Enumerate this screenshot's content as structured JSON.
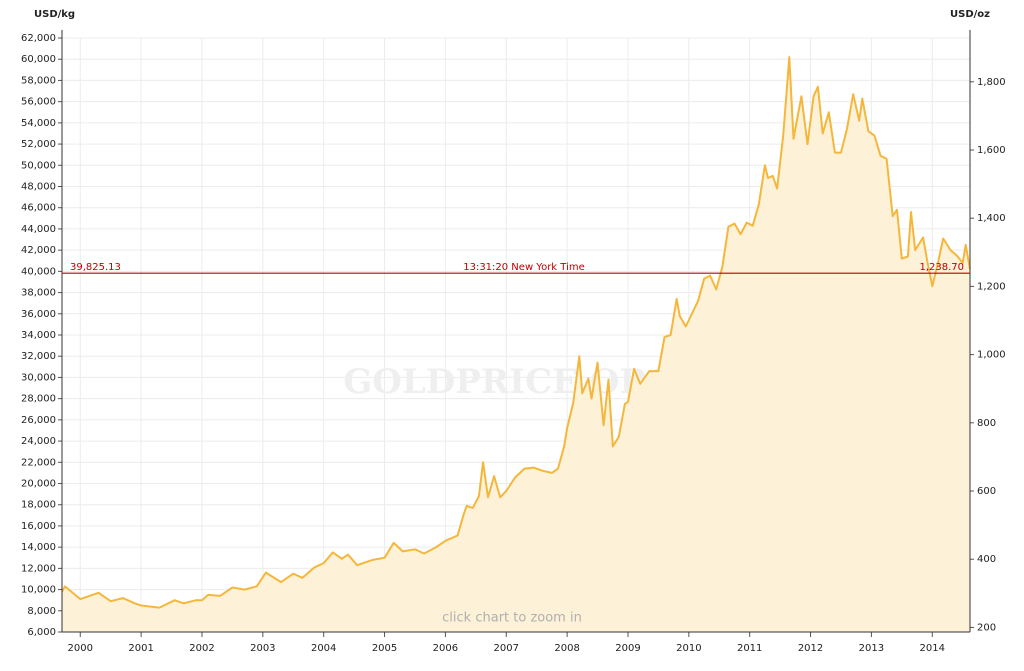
{
  "chart_data": {
    "type": "area",
    "y_label": "USD/kg",
    "y2_label": "USD/oz",
    "watermark": "GOLDPRICE.ORG",
    "hint": "click chart to zoom in",
    "color": "#f5b73b",
    "fill_color": "#fdf1d8",
    "grid": true,
    "x": [
      1999.7,
      1999.75,
      2000,
      2000.3,
      2000.5,
      2000.7,
      2000.9,
      2001,
      2001.3,
      2001.55,
      2001.7,
      2001.9,
      2002,
      2002.1,
      2002.3,
      2002.5,
      2002.7,
      2002.9,
      2003.05,
      2003.3,
      2003.5,
      2003.65,
      2003.85,
      2004,
      2004.15,
      2004.3,
      2004.4,
      2004.55,
      2004.8,
      2005,
      2005.15,
      2005.3,
      2005.5,
      2005.65,
      2005.85,
      2006,
      2006.2,
      2006.3,
      2006.35,
      2006.45,
      2006.55,
      2006.62,
      2006.7,
      2006.8,
      2006.9,
      2007,
      2007.15,
      2007.3,
      2007.45,
      2007.6,
      2007.75,
      2007.85,
      2007.95,
      2008,
      2008.1,
      2008.2,
      2008.25,
      2008.35,
      2008.4,
      2008.5,
      2008.6,
      2008.68,
      2008.75,
      2008.85,
      2008.95,
      2009,
      2009.1,
      2009.2,
      2009.35,
      2009.5,
      2009.6,
      2009.7,
      2009.8,
      2009.85,
      2009.95,
      2010.05,
      2010.15,
      2010.25,
      2010.35,
      2010.45,
      2010.55,
      2010.65,
      2010.75,
      2010.85,
      2010.95,
      2011.05,
      2011.15,
      2011.25,
      2011.3,
      2011.38,
      2011.45,
      2011.55,
      2011.65,
      2011.72,
      2011.85,
      2011.95,
      2012.05,
      2012.12,
      2012.2,
      2012.3,
      2012.4,
      2012.5,
      2012.6,
      2012.7,
      2012.8,
      2012.85,
      2012.95,
      2013.05,
      2013.15,
      2013.25,
      2013.35,
      2013.42,
      2013.5,
      2013.6,
      2013.65,
      2013.72,
      2013.85,
      2013.92,
      2014,
      2014.1,
      2014.18,
      2014.3,
      2014.4,
      2014.5,
      2014.55,
      2014.62
    ],
    "values": [
      9800,
      10300,
      9100,
      9700,
      8900,
      9200,
      8700,
      8500,
      8300,
      9000,
      8700,
      9000,
      9000,
      9500,
      9400,
      10200,
      10000,
      10300,
      11600,
      10700,
      11500,
      11100,
      12100,
      12500,
      13500,
      12900,
      13300,
      12300,
      12800,
      13000,
      14400,
      13600,
      13800,
      13400,
      14000,
      14600,
      15100,
      17100,
      17900,
      17700,
      18800,
      22000,
      18700,
      20700,
      18700,
      19300,
      20600,
      21400,
      21500,
      21200,
      21000,
      21400,
      23500,
      25200,
      27600,
      32000,
      28500,
      29900,
      28000,
      31400,
      25500,
      29800,
      23500,
      24400,
      27500,
      27700,
      30800,
      29400,
      30600,
      30600,
      33800,
      34000,
      37400,
      35800,
      34800,
      36000,
      37200,
      39300,
      39600,
      38300,
      40400,
      44200,
      44500,
      43500,
      44600,
      44300,
      46300,
      50000,
      48800,
      49000,
      47800,
      52800,
      60200,
      52500,
      56500,
      52000,
      56500,
      57400,
      53000,
      55000,
      51200,
      51200,
      53500,
      56700,
      54200,
      56300,
      53200,
      52800,
      50900,
      50600,
      45200,
      45800,
      41200,
      41400,
      45600,
      42000,
      43200,
      40900,
      38600,
      41000,
      43100,
      42000,
      41500,
      40800,
      42500,
      40200
    ],
    "current": {
      "value": 39825.13,
      "label": "39,825.13",
      "value_oz": 1238.7,
      "label_oz": "1,238.70",
      "time": "13:31:20 New York Time",
      "color": "#c00000"
    },
    "xlim": [
      1999.7,
      2014.62
    ],
    "xticks": [
      2000,
      2001,
      2002,
      2003,
      2004,
      2005,
      2006,
      2007,
      2008,
      2009,
      2010,
      2011,
      2012,
      2013,
      2014
    ],
    "ylim": [
      6000,
      62000
    ],
    "yticks": [
      {
        "value": 6000,
        "label": "6,000"
      },
      {
        "value": 8000,
        "label": "8,000"
      },
      {
        "value": 10000,
        "label": "10,000"
      },
      {
        "value": 12000,
        "label": "12,000"
      },
      {
        "value": 14000,
        "label": "14,000"
      },
      {
        "value": 16000,
        "label": "16,000"
      },
      {
        "value": 18000,
        "label": "18,000"
      },
      {
        "value": 20000,
        "label": "20,000"
      },
      {
        "value": 22000,
        "label": "22,000"
      },
      {
        "value": 24000,
        "label": "24,000"
      },
      {
        "value": 26000,
        "label": "26,000"
      },
      {
        "value": 28000,
        "label": "28,000"
      },
      {
        "value": 30000,
        "label": "30,000"
      },
      {
        "value": 32000,
        "label": "32,000"
      },
      {
        "value": 34000,
        "label": "34,000"
      },
      {
        "value": 36000,
        "label": "36,000"
      },
      {
        "value": 38000,
        "label": "38,000"
      },
      {
        "value": 40000,
        "label": "40,000"
      },
      {
        "value": 42000,
        "label": "42,000"
      },
      {
        "value": 44000,
        "label": "44,000"
      },
      {
        "value": 46000,
        "label": "46,000"
      },
      {
        "value": 48000,
        "label": "48,000"
      },
      {
        "value": 50000,
        "label": "50,000"
      },
      {
        "value": 52000,
        "label": "52,000"
      },
      {
        "value": 54000,
        "label": "54,000"
      },
      {
        "value": 56000,
        "label": "56,000"
      },
      {
        "value": 58000,
        "label": "58,000"
      },
      {
        "value": 60000,
        "label": "60,000"
      },
      {
        "value": 62000,
        "label": "62,000"
      }
    ],
    "y2lim": [
      186.6,
      1928.4
    ],
    "y2ticks": [
      200,
      400,
      600,
      800,
      {
        "value": 1000,
        "label": "1,000"
      },
      {
        "value": 1200,
        "label": "1,200"
      },
      {
        "value": 1400,
        "label": "1,400"
      },
      {
        "value": 1600,
        "label": "1,600"
      },
      {
        "value": 1800,
        "label": "1,800"
      }
    ]
  }
}
